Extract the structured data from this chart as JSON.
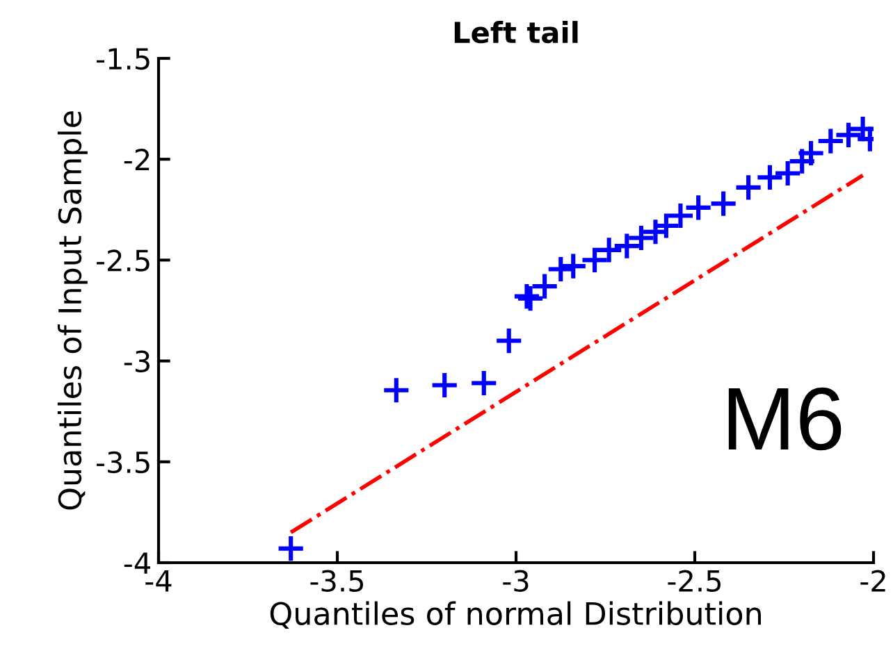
{
  "chart_data": {
    "type": "scatter",
    "title": "Left tail",
    "xlabel": "Quantiles of normal Distribution",
    "ylabel": "Quantiles of Input Sample",
    "annotations": [
      "M6"
    ],
    "series": [
      {
        "color": "#0000ff",
        "marker": "cross",
        "x": [
          -3.63,
          -3.335,
          -3.2,
          -3.09,
          -3.02,
          -2.97,
          -2.96,
          -2.92,
          -2.875,
          -2.84,
          -2.78,
          -2.74,
          -2.69,
          -2.65,
          -2.61,
          -2.58,
          -2.54,
          -2.49,
          -2.42,
          -2.35,
          -2.29,
          -2.24,
          -2.2,
          -2.175,
          -2.12,
          -2.07,
          -2.03,
          -2.01
        ],
        "values": [
          -3.93,
          -3.145,
          -3.12,
          -3.11,
          -2.9,
          -2.68,
          -2.69,
          -2.63,
          -2.545,
          -2.53,
          -2.5,
          -2.45,
          -2.43,
          -2.39,
          -2.36,
          -2.33,
          -2.28,
          -2.24,
          -2.22,
          -2.14,
          -2.09,
          -2.07,
          -2.01,
          -1.97,
          -1.91,
          -1.88,
          -1.85,
          -1.9
        ]
      },
      {
        "type": "line",
        "color": "#ff0000",
        "line_style": "dashdot",
        "x": [
          -3.63,
          -2.03
        ],
        "values": [
          -3.85,
          -2.08
        ]
      }
    ],
    "xlim": [
      -4,
      -2
    ],
    "ylim": [
      -4,
      -1.5
    ],
    "xticks": [
      -4,
      -3.5,
      -3,
      -2.5,
      -2
    ],
    "yticks": [
      -4,
      -3.5,
      -3,
      -2.5,
      -2,
      -1.5
    ],
    "grid": false,
    "legend": false
  }
}
